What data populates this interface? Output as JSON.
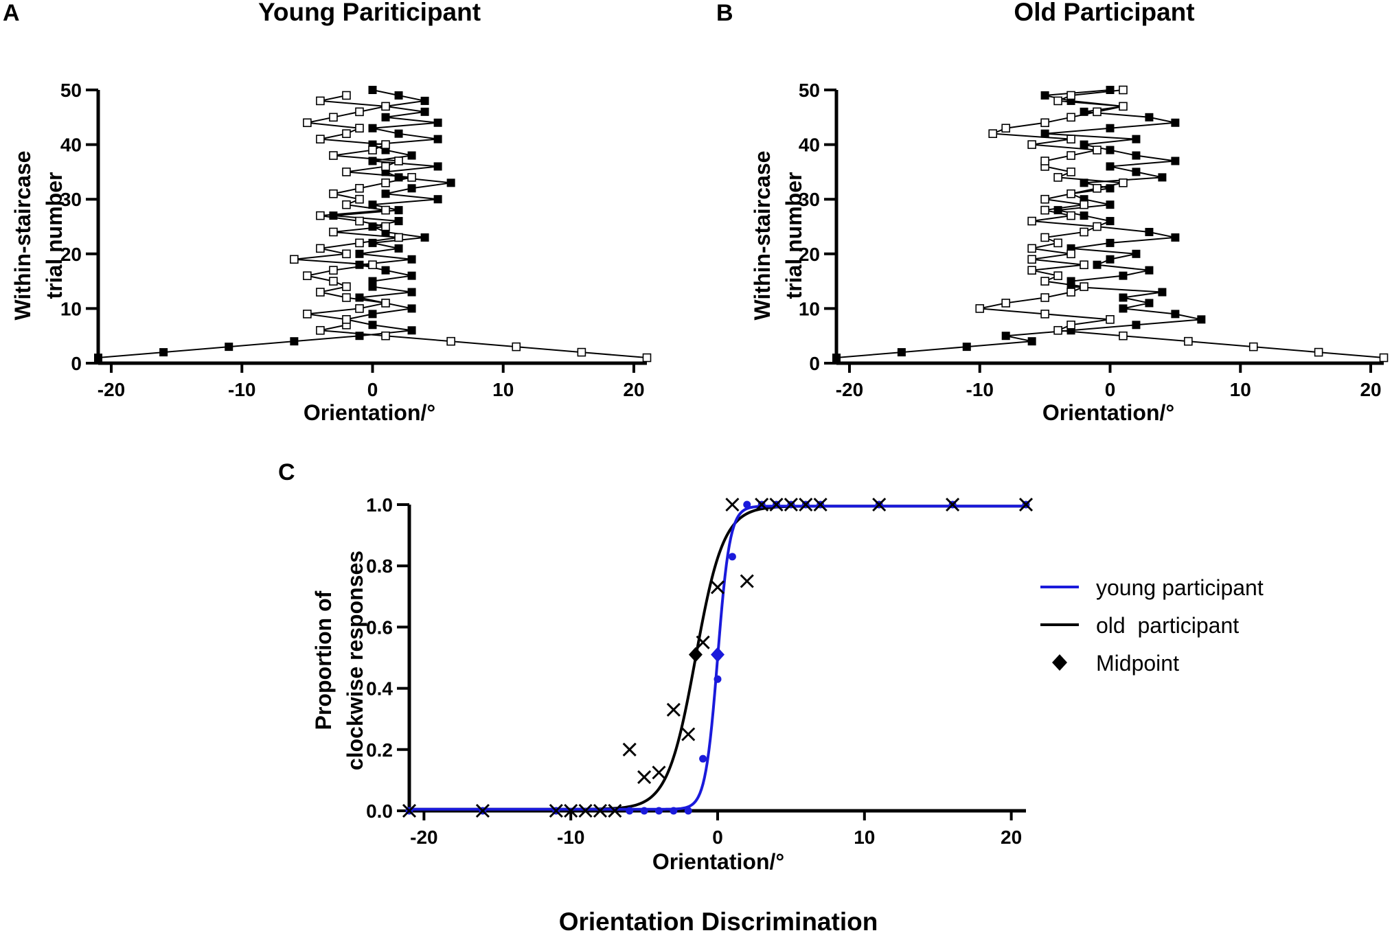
{
  "figure": {
    "title": "Orientation Discrimination",
    "colors": {
      "young": "#1a1adb",
      "old": "#000000",
      "axis": "#000000"
    }
  },
  "chart_data": [
    {
      "id": "A",
      "type": "line",
      "panel_label": "A",
      "title": "Young Pariticipant",
      "xlabel": "Orientation/°",
      "ylabel_lines": [
        "Within-staircase",
        "trial number"
      ],
      "xlim": [
        -21,
        21
      ],
      "ylim": [
        0,
        50
      ],
      "xticks": [
        -20,
        -10,
        0,
        10,
        20
      ],
      "yticks": [
        0,
        10,
        20,
        30,
        40,
        50
      ],
      "series": [
        {
          "name": "staircase starting at -21°",
          "marker": "filled-square",
          "points": [
            [
              -21,
              1
            ],
            [
              -16,
              2
            ],
            [
              -11,
              3
            ],
            [
              -6,
              4
            ],
            [
              -1,
              5
            ],
            [
              3,
              6
            ],
            [
              0,
              7
            ],
            [
              -2,
              8
            ],
            [
              0,
              9
            ],
            [
              3,
              10
            ],
            [
              1,
              11
            ],
            [
              -1,
              12
            ],
            [
              3,
              13
            ],
            [
              0,
              14
            ],
            [
              0,
              15
            ],
            [
              3,
              16
            ],
            [
              1,
              17
            ],
            [
              -1,
              18
            ],
            [
              3,
              19
            ],
            [
              -1,
              20
            ],
            [
              2,
              21
            ],
            [
              0,
              22
            ],
            [
              4,
              23
            ],
            [
              1,
              24
            ],
            [
              0,
              25
            ],
            [
              2,
              26
            ],
            [
              -3,
              27
            ],
            [
              2,
              28
            ],
            [
              0,
              29
            ],
            [
              5,
              30
            ],
            [
              1,
              31
            ],
            [
              3,
              32
            ],
            [
              6,
              33
            ],
            [
              2,
              34
            ],
            [
              1,
              35
            ],
            [
              5,
              36
            ],
            [
              0,
              37
            ],
            [
              3,
              38
            ],
            [
              1,
              39
            ],
            [
              0,
              40
            ],
            [
              5,
              41
            ],
            [
              2,
              42
            ],
            [
              0,
              43
            ],
            [
              5,
              44
            ],
            [
              1,
              45
            ],
            [
              4,
              46
            ],
            [
              1,
              47
            ],
            [
              4,
              48
            ],
            [
              2,
              49
            ],
            [
              0,
              50
            ]
          ]
        },
        {
          "name": "staircase starting at +21°",
          "marker": "open-square",
          "points": [
            [
              21,
              1
            ],
            [
              16,
              2
            ],
            [
              11,
              3
            ],
            [
              6,
              4
            ],
            [
              1,
              5
            ],
            [
              -4,
              6
            ],
            [
              -2,
              7
            ],
            [
              -2,
              8
            ],
            [
              -5,
              9
            ],
            [
              -1,
              10
            ],
            [
              1,
              11
            ],
            [
              -2,
              12
            ],
            [
              -4,
              13
            ],
            [
              -2,
              14
            ],
            [
              -3,
              15
            ],
            [
              -5,
              16
            ],
            [
              -3,
              17
            ],
            [
              0,
              18
            ],
            [
              -6,
              19
            ],
            [
              -2,
              20
            ],
            [
              -4,
              21
            ],
            [
              -1,
              22
            ],
            [
              2,
              23
            ],
            [
              -3,
              24
            ],
            [
              1,
              25
            ],
            [
              -1,
              26
            ],
            [
              -4,
              27
            ],
            [
              1,
              28
            ],
            [
              -2,
              29
            ],
            [
              -1,
              30
            ],
            [
              -3,
              31
            ],
            [
              -1,
              32
            ],
            [
              1,
              33
            ],
            [
              3,
              34
            ],
            [
              -2,
              35
            ],
            [
              1,
              36
            ],
            [
              2,
              37
            ],
            [
              -3,
              38
            ],
            [
              0,
              39
            ],
            [
              1,
              40
            ],
            [
              -4,
              41
            ],
            [
              -2,
              42
            ],
            [
              -1,
              43
            ],
            [
              -5,
              44
            ],
            [
              -3,
              45
            ],
            [
              -1,
              46
            ],
            [
              1,
              47
            ],
            [
              -4,
              48
            ],
            [
              -2,
              49
            ]
          ]
        }
      ]
    },
    {
      "id": "B",
      "type": "line",
      "panel_label": "B",
      "title": "Old Participant",
      "xlabel": "Orientation/°",
      "ylabel_lines": [
        "Within-staircase",
        "trial number"
      ],
      "xlim": [
        -21,
        21
      ],
      "ylim": [
        0,
        50
      ],
      "xticks": [
        -20,
        -10,
        0,
        10,
        20
      ],
      "yticks": [
        0,
        10,
        20,
        30,
        40,
        50
      ],
      "series": [
        {
          "name": "staircase starting at -21°",
          "marker": "filled-square",
          "points": [
            [
              -21,
              1
            ],
            [
              -16,
              2
            ],
            [
              -11,
              3
            ],
            [
              -6,
              4
            ],
            [
              -8,
              5
            ],
            [
              -3,
              6
            ],
            [
              2,
              7
            ],
            [
              7,
              8
            ],
            [
              5,
              9
            ],
            [
              1,
              10
            ],
            [
              3,
              11
            ],
            [
              1,
              12
            ],
            [
              4,
              13
            ],
            [
              -3,
              14
            ],
            [
              -3,
              15
            ],
            [
              1,
              16
            ],
            [
              3,
              17
            ],
            [
              -1,
              18
            ],
            [
              0,
              19
            ],
            [
              2,
              20
            ],
            [
              -3,
              21
            ],
            [
              0,
              22
            ],
            [
              5,
              23
            ],
            [
              3,
              24
            ],
            [
              -1,
              25
            ],
            [
              0,
              26
            ],
            [
              -2,
              27
            ],
            [
              -4,
              28
            ],
            [
              0,
              29
            ],
            [
              -2,
              30
            ],
            [
              -3,
              31
            ],
            [
              0,
              32
            ],
            [
              -2,
              33
            ],
            [
              4,
              34
            ],
            [
              2,
              35
            ],
            [
              0,
              36
            ],
            [
              5,
              37
            ],
            [
              2,
              38
            ],
            [
              0,
              39
            ],
            [
              -2,
              40
            ],
            [
              2,
              41
            ],
            [
              -5,
              42
            ],
            [
              0,
              43
            ],
            [
              5,
              44
            ],
            [
              3,
              45
            ],
            [
              -2,
              46
            ],
            [
              1,
              47
            ],
            [
              -3,
              48
            ],
            [
              -5,
              49
            ],
            [
              0,
              50
            ]
          ]
        },
        {
          "name": "staircase starting at +21°",
          "marker": "open-square",
          "points": [
            [
              21,
              1
            ],
            [
              16,
              2
            ],
            [
              11,
              3
            ],
            [
              6,
              4
            ],
            [
              1,
              5
            ],
            [
              -4,
              6
            ],
            [
              -3,
              7
            ],
            [
              0,
              8
            ],
            [
              -5,
              9
            ],
            [
              -10,
              10
            ],
            [
              -8,
              11
            ],
            [
              -5,
              12
            ],
            [
              -3,
              13
            ],
            [
              -2,
              14
            ],
            [
              -5,
              15
            ],
            [
              -4,
              16
            ],
            [
              -6,
              17
            ],
            [
              -2,
              18
            ],
            [
              -6,
              19
            ],
            [
              -3,
              20
            ],
            [
              -6,
              21
            ],
            [
              -4,
              22
            ],
            [
              -5,
              23
            ],
            [
              -2,
              24
            ],
            [
              -1,
              25
            ],
            [
              -6,
              26
            ],
            [
              -3,
              27
            ],
            [
              -5,
              28
            ],
            [
              -2,
              29
            ],
            [
              -5,
              30
            ],
            [
              -3,
              31
            ],
            [
              -1,
              32
            ],
            [
              1,
              33
            ],
            [
              -4,
              34
            ],
            [
              -3,
              35
            ],
            [
              -5,
              36
            ],
            [
              -5,
              37
            ],
            [
              -3,
              38
            ],
            [
              -1,
              39
            ],
            [
              -6,
              40
            ],
            [
              -3,
              41
            ],
            [
              -9,
              42
            ],
            [
              -8,
              43
            ],
            [
              -5,
              44
            ],
            [
              -3,
              45
            ],
            [
              -1,
              46
            ],
            [
              1,
              47
            ],
            [
              -4,
              48
            ],
            [
              -3,
              49
            ],
            [
              1,
              50
            ]
          ]
        }
      ]
    },
    {
      "id": "C",
      "type": "scatter",
      "panel_label": "C",
      "title": "",
      "xlabel": "Orientation/°",
      "ylabel_lines": [
        "Proportion of",
        "clockwise responses"
      ],
      "xlim": [
        -21,
        21
      ],
      "ylim": [
        0,
        1
      ],
      "xticks": [
        -20,
        -10,
        0,
        10,
        20
      ],
      "xtick_labels": [
        "-20",
        "-10",
        "0",
        "10",
        "20"
      ],
      "yticks": [
        0,
        0.2,
        0.4,
        0.6,
        0.8,
        1.0
      ],
      "ytick_labels": [
        "0.0",
        "0.2",
        "0.4",
        "0.6",
        "0.8",
        "1.0"
      ],
      "legend": {
        "position": "right",
        "entries": [
          {
            "label": "young participant",
            "symbol": "line",
            "color": "#1a1adb"
          },
          {
            "label": "old  participant",
            "symbol": "line",
            "color": "#000000"
          },
          {
            "label": "Midpoint",
            "symbol": "diamond",
            "color": "#000000"
          }
        ]
      },
      "series": [
        {
          "name": "young participant",
          "marker": "dot",
          "color": "#1a1adb",
          "points": [
            [
              -21,
              0
            ],
            [
              -16,
              0
            ],
            [
              -11,
              0
            ],
            [
              -6,
              0
            ],
            [
              -5,
              0
            ],
            [
              -4,
              0
            ],
            [
              -3,
              0
            ],
            [
              -2,
              0
            ],
            [
              -1,
              0.17
            ],
            [
              0,
              0.43
            ],
            [
              1,
              0.83
            ],
            [
              2,
              1
            ],
            [
              3,
              1
            ],
            [
              4,
              1
            ],
            [
              5,
              1
            ],
            [
              6,
              1
            ],
            [
              7,
              1
            ],
            [
              11,
              1
            ],
            [
              16,
              1
            ],
            [
              21,
              1
            ]
          ],
          "fit": {
            "type": "logistic",
            "midpoint": 0,
            "slope": 2.4
          },
          "midpoint_point": [
            0,
            0.51
          ]
        },
        {
          "name": "old participant",
          "marker": "cross",
          "color": "#000000",
          "points": [
            [
              -21,
              0
            ],
            [
              -16,
              0
            ],
            [
              -11,
              0
            ],
            [
              -10,
              0
            ],
            [
              -9,
              0
            ],
            [
              -8,
              0
            ],
            [
              -7,
              0
            ],
            [
              -6,
              0.2
            ],
            [
              -5,
              0.11
            ],
            [
              -4,
              0.125
            ],
            [
              -3,
              0.33
            ],
            [
              -2,
              0.25
            ],
            [
              -1,
              0.55
            ],
            [
              0,
              0.73
            ],
            [
              1,
              1
            ],
            [
              2,
              0.75
            ],
            [
              3,
              1
            ],
            [
              4,
              1
            ],
            [
              5,
              1
            ],
            [
              6,
              1
            ],
            [
              7,
              1
            ],
            [
              11,
              1
            ],
            [
              16,
              1
            ],
            [
              21,
              1
            ]
          ],
          "fit": {
            "type": "logistic",
            "midpoint": -1.5,
            "slope": 1.05
          },
          "midpoint_point": [
            -1.5,
            0.51
          ]
        }
      ]
    }
  ]
}
